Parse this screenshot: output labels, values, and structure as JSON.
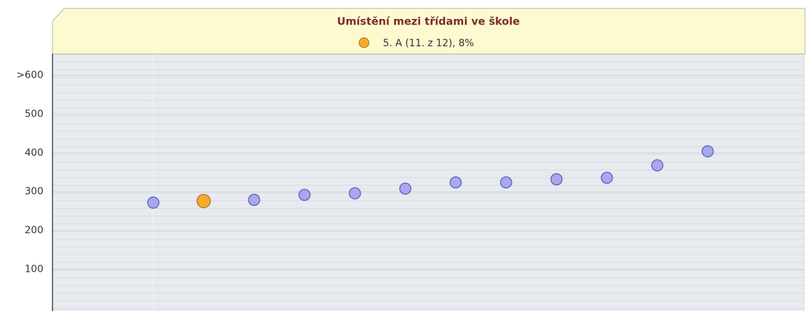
{
  "chart_data": {
    "type": "scatter",
    "title": "Umístění mezi třídami ve škole",
    "series": [
      {
        "name": "5. A (11. z 12), 8%",
        "color": "#f6ab2e",
        "values": [
          null,
          276,
          null,
          null,
          null,
          null,
          null,
          null,
          null,
          null,
          null,
          null
        ]
      },
      {
        "color": "#a7a7f2",
        "values": [
          272,
          null,
          279,
          292,
          296,
          308,
          324,
          324,
          332,
          336,
          368,
          404
        ]
      }
    ],
    "ylim": [
      0,
      655
    ],
    "yticks": [
      100,
      200,
      300,
      400,
      500,
      {
        "value": 600,
        "label": ">600"
      }
    ],
    "grid": true
  }
}
